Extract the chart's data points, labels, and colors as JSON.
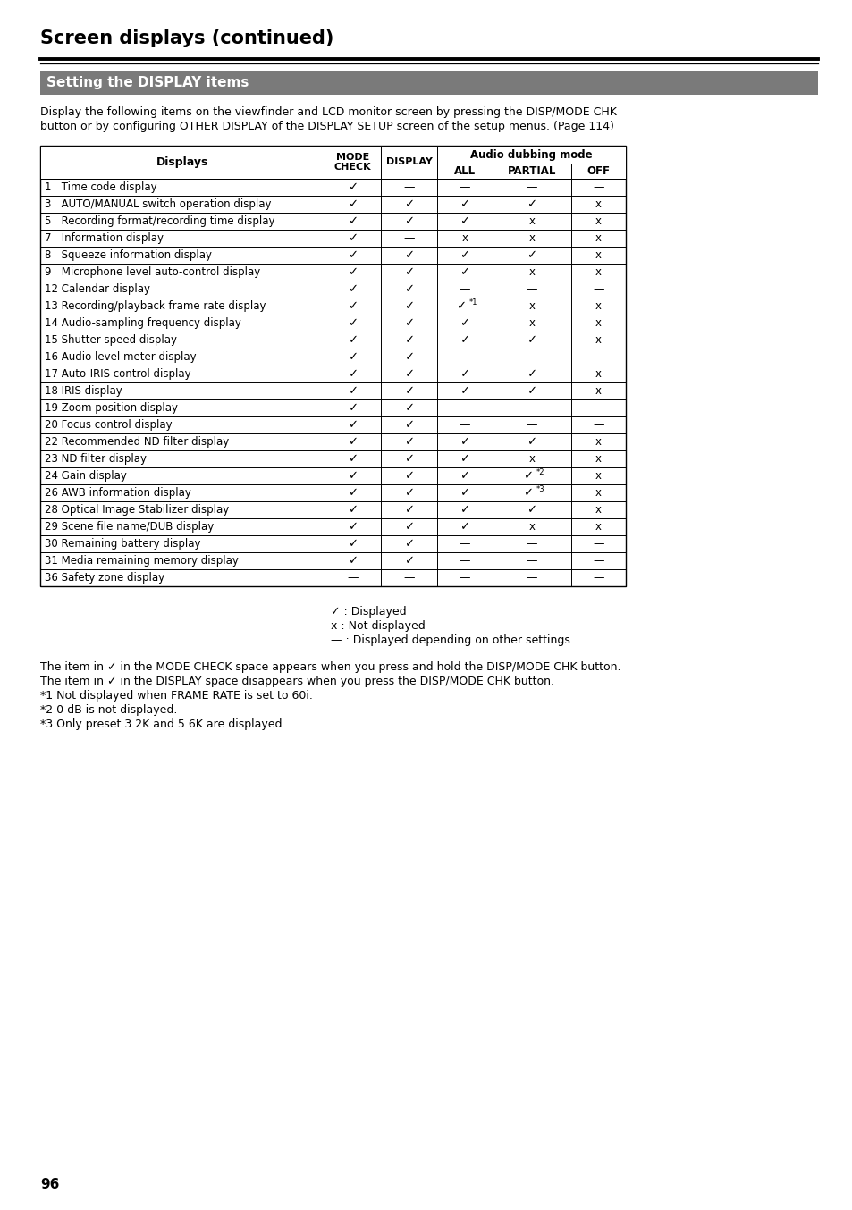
{
  "page_title": "Screen displays (continued)",
  "section_title": "Setting the DISPLAY items",
  "intro_text1": "Display the following items on the viewfinder and LCD monitor screen by pressing the DISP/MODE CHK",
  "intro_text2": "button or by configuring OTHER DISPLAY of the DISPLAY SETUP screen of the setup menus. (Page 114)",
  "audio_dubbing_header": "Audio dubbing mode",
  "rows": [
    [
      "1   Time code display",
      "c",
      "d",
      "d",
      "d",
      "d"
    ],
    [
      "3   AUTO/MANUAL switch operation display",
      "c",
      "c",
      "c",
      "c",
      "x"
    ],
    [
      "5   Recording format/recording time display",
      "c",
      "c",
      "c",
      "x",
      "x"
    ],
    [
      "7   Information display",
      "c",
      "d",
      "x",
      "x",
      "x"
    ],
    [
      "8   Squeeze information display",
      "c",
      "c",
      "c",
      "c",
      "x"
    ],
    [
      "9   Microphone level auto-control display",
      "c",
      "c",
      "c",
      "x",
      "x"
    ],
    [
      "12 Calendar display",
      "c",
      "c",
      "d",
      "d",
      "d"
    ],
    [
      "13 Recording/playback frame rate display",
      "c",
      "c",
      "c*1",
      "x",
      "x"
    ],
    [
      "14 Audio-sampling frequency display",
      "c",
      "c",
      "c",
      "x",
      "x"
    ],
    [
      "15 Shutter speed display",
      "c",
      "c",
      "c",
      "c",
      "x"
    ],
    [
      "16 Audio level meter display",
      "c",
      "c",
      "d",
      "d",
      "d"
    ],
    [
      "17 Auto-IRIS control display",
      "c",
      "c",
      "c",
      "c",
      "x"
    ],
    [
      "18 IRIS display",
      "c",
      "c",
      "c",
      "c",
      "x"
    ],
    [
      "19 Zoom position display",
      "c",
      "c",
      "d",
      "d",
      "d"
    ],
    [
      "20 Focus control display",
      "c",
      "c",
      "d",
      "d",
      "d"
    ],
    [
      "22 Recommended ND filter display",
      "c",
      "c",
      "c",
      "c",
      "x"
    ],
    [
      "23 ND filter display",
      "c",
      "c",
      "c",
      "x",
      "x"
    ],
    [
      "24 Gain display",
      "c",
      "c",
      "c",
      "c*2",
      "x"
    ],
    [
      "26 AWB information display",
      "c",
      "c",
      "c",
      "c*3",
      "x"
    ],
    [
      "28 Optical Image Stabilizer display",
      "c",
      "c",
      "c",
      "c",
      "x"
    ],
    [
      "29 Scene file name/DUB display",
      "c",
      "c",
      "c",
      "x",
      "x"
    ],
    [
      "30 Remaining battery display",
      "c",
      "c",
      "d",
      "d",
      "d"
    ],
    [
      "31 Media remaining memory display",
      "c",
      "c",
      "d",
      "d",
      "d"
    ],
    [
      "36 Safety zone display",
      "d",
      "d",
      "d",
      "d",
      "d"
    ]
  ],
  "legend_lines": [
    "✓ : Displayed",
    "x : Not displayed",
    "— : Displayed depending on other settings"
  ],
  "footnotes": [
    "The item in ✓ in the MODE CHECK space appears when you press and hold the DISP/MODE CHK button.",
    "The item in ✓ in the DISPLAY space disappears when you press the DISP/MODE CHK button.",
    "*1 Not displayed when FRAME RATE is set to 60i.",
    "*2 0 dB is not displayed.",
    "*3 Only preset 3.2K and 5.6K are displayed."
  ],
  "page_number": "96",
  "bg_color": "#ffffff",
  "section_bg": "#7a7a7a",
  "section_text_color": "#ffffff"
}
